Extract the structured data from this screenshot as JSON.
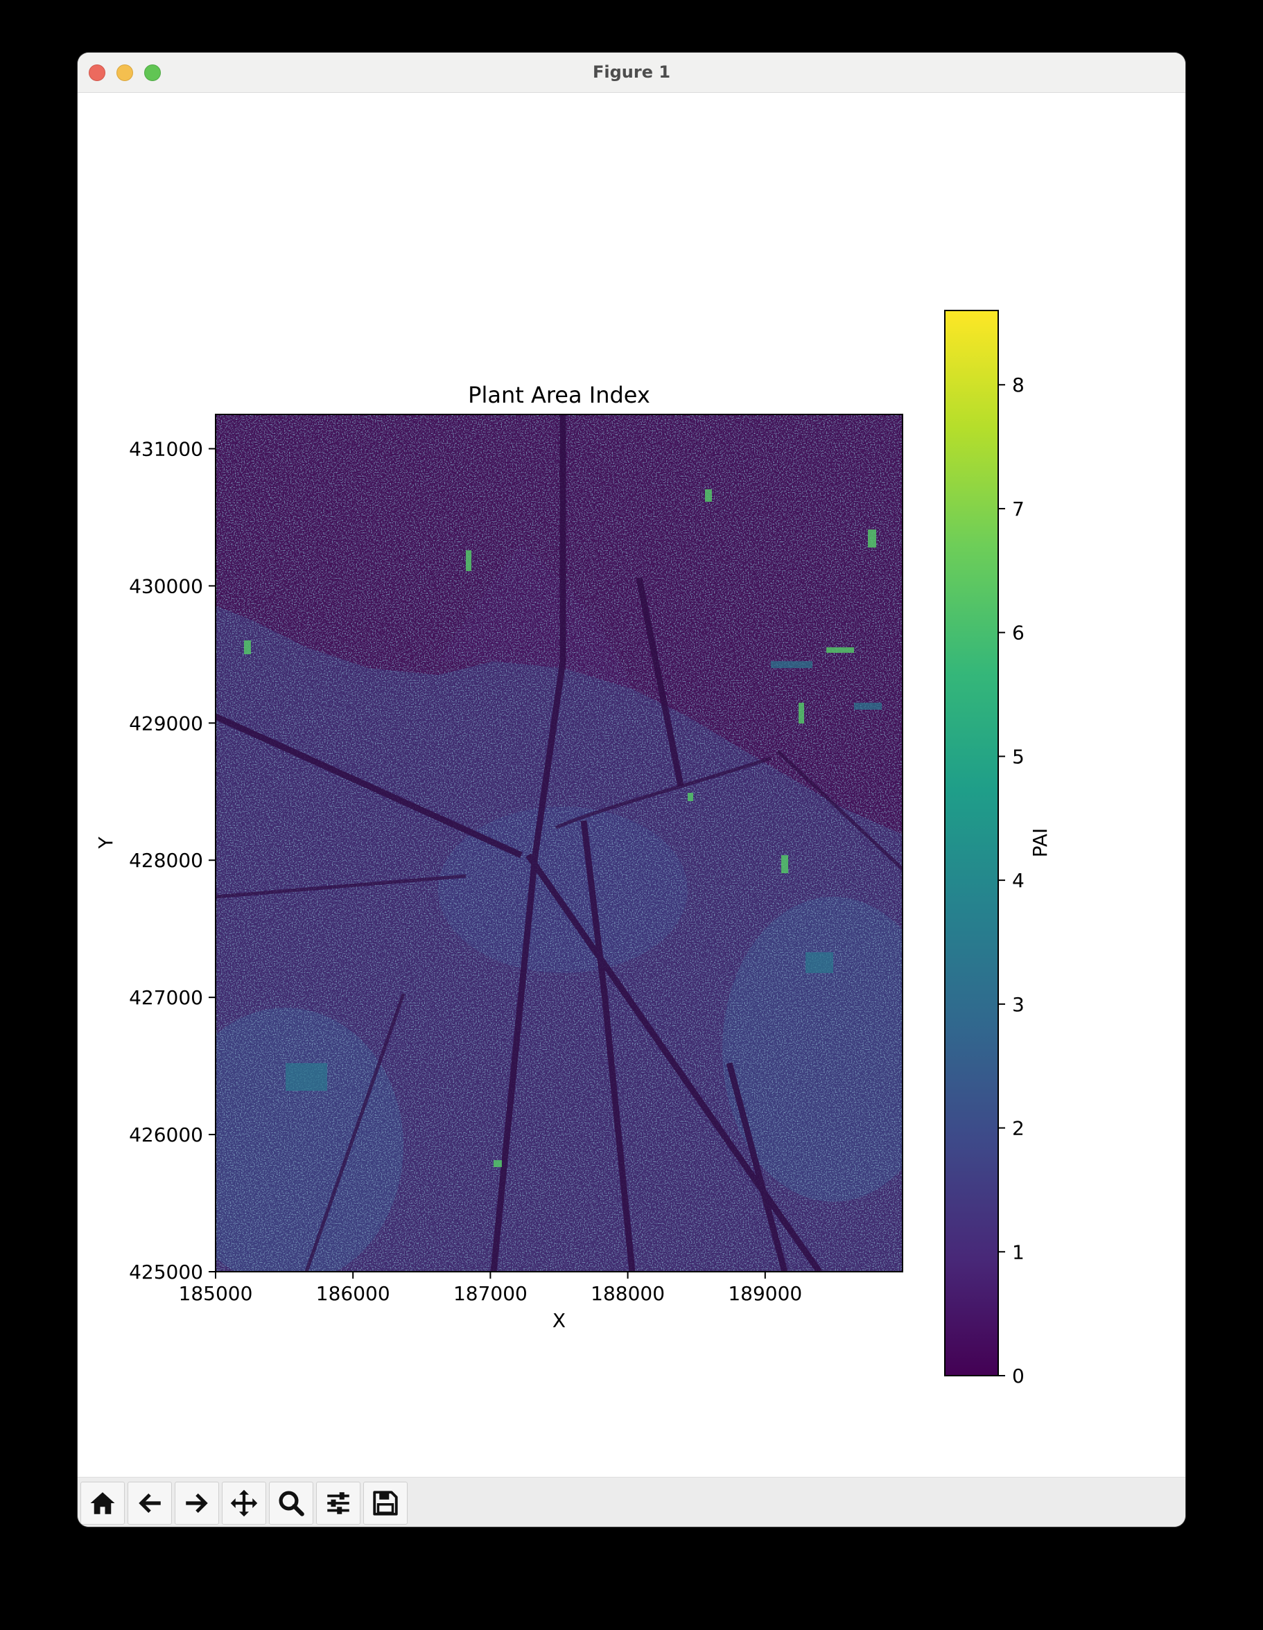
{
  "window": {
    "title": "Figure 1"
  },
  "toolbar": {
    "buttons": [
      {
        "name": "home-button",
        "icon": "home-icon"
      },
      {
        "name": "back-button",
        "icon": "arrow-left-icon"
      },
      {
        "name": "forward-button",
        "icon": "arrow-right-icon"
      },
      {
        "name": "pan-button",
        "icon": "move-icon"
      },
      {
        "name": "zoom-button",
        "icon": "magnifier-icon"
      },
      {
        "name": "configure-subplots-button",
        "icon": "sliders-icon"
      },
      {
        "name": "save-button",
        "icon": "floppy-disk-icon"
      }
    ]
  },
  "chart_data": {
    "type": "heatmap",
    "title": "Plant Area Index",
    "xlabel": "X",
    "ylabel": "Y",
    "xlim": [
      185000,
      190000
    ],
    "ylim": [
      425000,
      431250
    ],
    "xticks": [
      "185000",
      "186000",
      "187000",
      "188000",
      "189000"
    ],
    "yticks": [
      "425000",
      "426000",
      "427000",
      "428000",
      "429000",
      "430000",
      "431000"
    ],
    "colormap": "viridis",
    "colorbar": {
      "label": "PAI",
      "range": [
        0,
        8.6
      ],
      "ticks": [
        "0",
        "1",
        "2",
        "3",
        "4",
        "5",
        "6",
        "7",
        "8"
      ]
    }
  }
}
